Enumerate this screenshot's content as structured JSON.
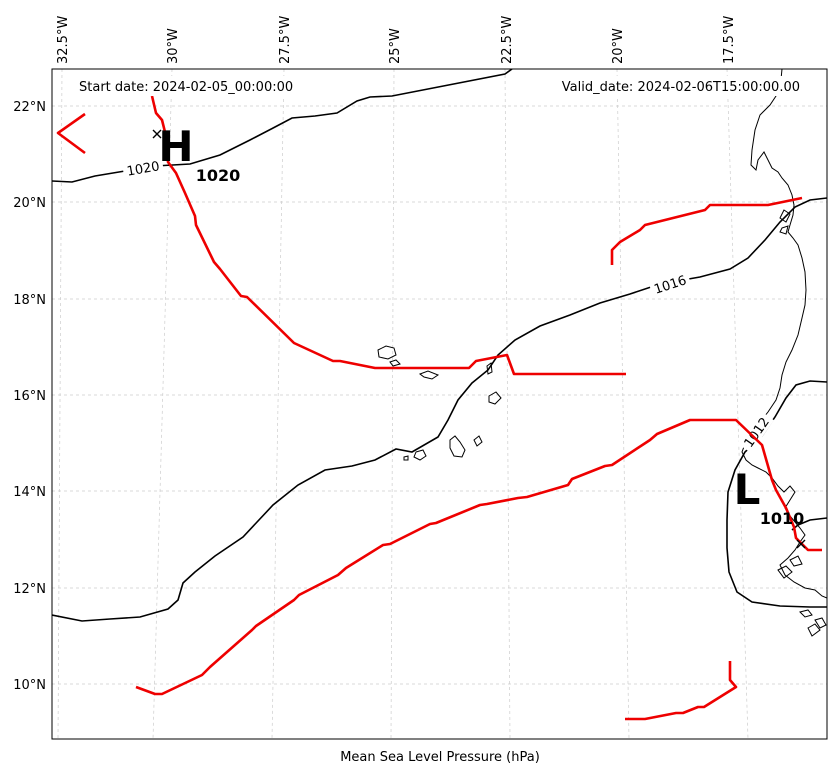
{
  "map": {
    "start_label": "Start date: 2024-02-05_00:00:00",
    "valid_label": "Valid_date: 2024-02-06T15:00:00.00",
    "xlabel": "Mean Sea Level Pressure (hPa)",
    "lon_ticks": [
      "32.5°W",
      "30°W",
      "27.5°W",
      "25°W",
      "22.5°W",
      "20°W",
      "17.5°W"
    ],
    "lat_ticks": [
      "22°N",
      "20°N",
      "18°N",
      "16°N",
      "14°N",
      "12°N",
      "10°N"
    ],
    "isobars": [
      {
        "label": "1020",
        "rotation": -10
      },
      {
        "label": "1016",
        "rotation": -18
      },
      {
        "label": "1012",
        "rotation": -55
      }
    ],
    "high": {
      "symbol": "H",
      "value": "1020"
    },
    "low": {
      "symbol": "L",
      "value": "1010"
    },
    "colors": {
      "isobar": "#000000",
      "front": "#ee0000",
      "grid": "#cccccc",
      "frame": "#000000"
    }
  }
}
